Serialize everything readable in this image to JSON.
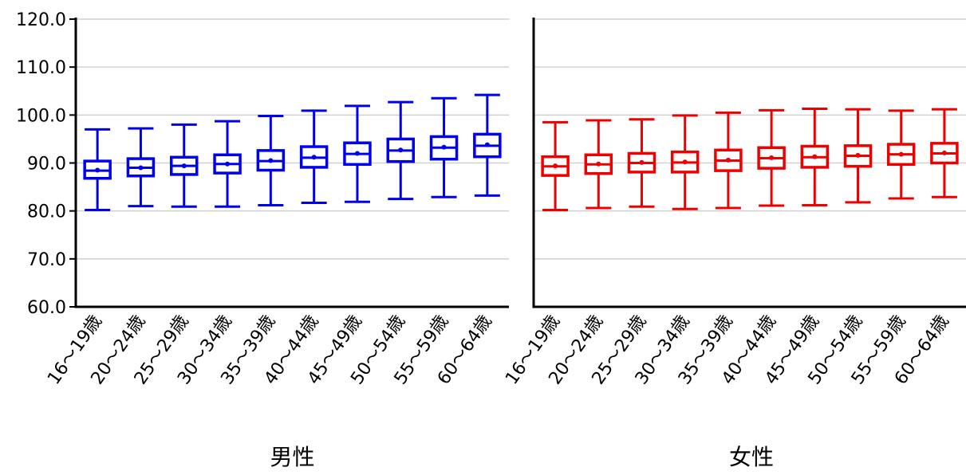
{
  "chart_data": [
    {
      "type": "box",
      "xlabel": "男性",
      "ylabel": "",
      "ylim": [
        60,
        120
      ],
      "yticks": [
        "60.0",
        "70.0",
        "80.0",
        "90.0",
        "100.0",
        "110.0",
        "120.0"
      ],
      "grid": true,
      "color": "#0000ee",
      "categories": [
        "16～19歳",
        "20～24歳",
        "25～29歳",
        "30～34歳",
        "35～39歳",
        "40～44歳",
        "45～49歳",
        "50～54歳",
        "55～59歳",
        "60～64歳"
      ],
      "boxes": [
        {
          "min": 80.2,
          "q1": 86.8,
          "median": 88.4,
          "mean": 88.5,
          "q3": 90.4,
          "max": 97.0
        },
        {
          "min": 81.0,
          "q1": 87.3,
          "median": 89.0,
          "mean": 89.0,
          "q3": 90.9,
          "max": 97.2
        },
        {
          "min": 80.9,
          "q1": 87.6,
          "median": 89.4,
          "mean": 89.4,
          "q3": 91.2,
          "max": 98.0
        },
        {
          "min": 80.9,
          "q1": 87.9,
          "median": 89.8,
          "mean": 89.8,
          "q3": 91.7,
          "max": 98.7
        },
        {
          "min": 81.2,
          "q1": 88.5,
          "median": 90.4,
          "mean": 90.5,
          "q3": 92.6,
          "max": 99.8
        },
        {
          "min": 81.7,
          "q1": 89.1,
          "median": 91.1,
          "mean": 91.2,
          "q3": 93.4,
          "max": 100.9
        },
        {
          "min": 81.9,
          "q1": 89.7,
          "median": 91.9,
          "mean": 92.0,
          "q3": 94.2,
          "max": 101.9
        },
        {
          "min": 82.5,
          "q1": 90.3,
          "median": 92.6,
          "mean": 92.7,
          "q3": 95.0,
          "max": 102.7
        },
        {
          "min": 82.9,
          "q1": 90.8,
          "median": 93.2,
          "mean": 93.3,
          "q3": 95.5,
          "max": 103.5
        },
        {
          "min": 83.2,
          "q1": 91.3,
          "median": 93.6,
          "mean": 93.8,
          "q3": 96.0,
          "max": 104.2
        }
      ]
    },
    {
      "type": "box",
      "xlabel": "女性",
      "ylabel": "",
      "ylim": [
        60,
        120
      ],
      "grid": true,
      "color": "#ee0000",
      "categories": [
        "16～19歳",
        "20～24歳",
        "25～29歳",
        "30～34歳",
        "35～39歳",
        "40～44歳",
        "45～49歳",
        "50～54歳",
        "55～59歳",
        "60～64歳"
      ],
      "boxes": [
        {
          "min": 80.2,
          "q1": 87.4,
          "median": 89.3,
          "mean": 89.4,
          "q3": 91.3,
          "max": 98.5
        },
        {
          "min": 80.6,
          "q1": 87.8,
          "median": 89.7,
          "mean": 89.8,
          "q3": 91.7,
          "max": 98.9
        },
        {
          "min": 80.9,
          "q1": 88.1,
          "median": 90.0,
          "mean": 90.1,
          "q3": 92.0,
          "max": 99.1
        },
        {
          "min": 80.4,
          "q1": 88.1,
          "median": 90.1,
          "mean": 90.2,
          "q3": 92.3,
          "max": 99.9
        },
        {
          "min": 80.6,
          "q1": 88.4,
          "median": 90.5,
          "mean": 90.6,
          "q3": 92.7,
          "max": 100.5
        },
        {
          "min": 81.1,
          "q1": 88.9,
          "median": 91.0,
          "mean": 91.1,
          "q3": 93.2,
          "max": 101.0
        },
        {
          "min": 81.2,
          "q1": 89.1,
          "median": 91.2,
          "mean": 91.3,
          "q3": 93.5,
          "max": 101.3
        },
        {
          "min": 81.8,
          "q1": 89.3,
          "median": 91.5,
          "mean": 91.6,
          "q3": 93.6,
          "max": 101.2
        },
        {
          "min": 82.6,
          "q1": 89.7,
          "median": 91.8,
          "mean": 91.8,
          "q3": 93.9,
          "max": 100.9
        },
        {
          "min": 82.9,
          "q1": 90.0,
          "median": 92.0,
          "mean": 92.1,
          "q3": 94.1,
          "max": 101.2
        }
      ]
    }
  ]
}
